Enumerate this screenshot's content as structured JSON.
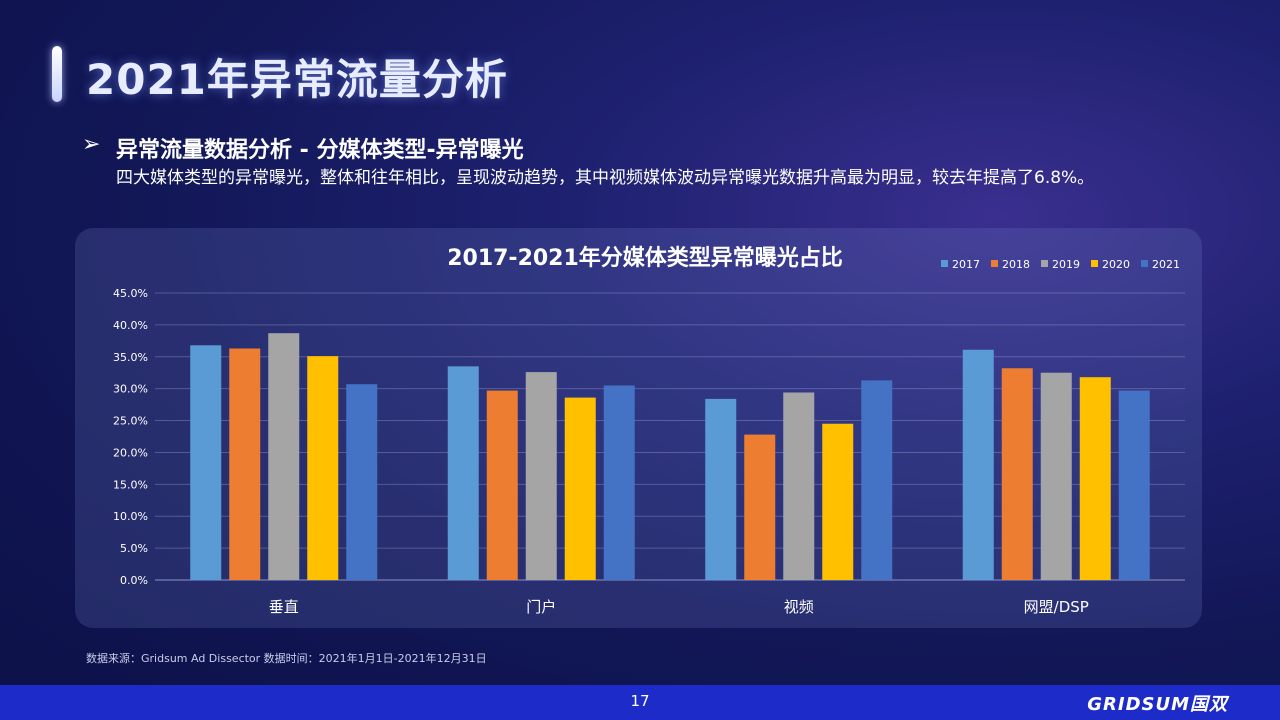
{
  "header": {
    "title": "2021年异常流量分析"
  },
  "subheading": {
    "arrow": "➢",
    "text": "异常流量数据分析 - 分媒体类型-异常曝光",
    "description": "四大媒体类型的异常曝光，整体和往年相比，呈现波动趋势，其中视频媒体波动异常曝光数据升高最为明显，较去年提高了6.8%。"
  },
  "chart_data": {
    "type": "bar",
    "title": "2017-2021年分媒体类型异常曝光占比",
    "categories": [
      "垂直",
      "门户",
      "视频",
      "网盟/DSP"
    ],
    "series": [
      {
        "name": "2017",
        "color": "#5b9bd5",
        "values": [
          36.8,
          33.5,
          28.4,
          36.1
        ]
      },
      {
        "name": "2018",
        "color": "#ed7d31",
        "values": [
          36.3,
          29.7,
          22.8,
          33.2
        ]
      },
      {
        "name": "2019",
        "color": "#a5a5a5",
        "values": [
          38.7,
          32.6,
          29.4,
          32.5
        ]
      },
      {
        "name": "2020",
        "color": "#ffc000",
        "values": [
          35.1,
          28.6,
          24.5,
          31.8
        ]
      },
      {
        "name": "2021",
        "color": "#4472c4",
        "values": [
          30.7,
          30.5,
          31.3,
          29.7
        ]
      }
    ],
    "ylim": [
      0,
      45
    ],
    "yticks": [
      "0.0%",
      "5.0%",
      "10.0%",
      "15.0%",
      "20.0%",
      "25.0%",
      "30.0%",
      "35.0%",
      "40.0%",
      "45.0%"
    ],
    "grid": true,
    "legend_position": "top-right"
  },
  "footer": {
    "source": "数据来源：Gridsum Ad Dissector 数据时间：2021年1月1日-2021年12月31日",
    "page_number": "17",
    "brand": "GRIDSUM国双"
  }
}
